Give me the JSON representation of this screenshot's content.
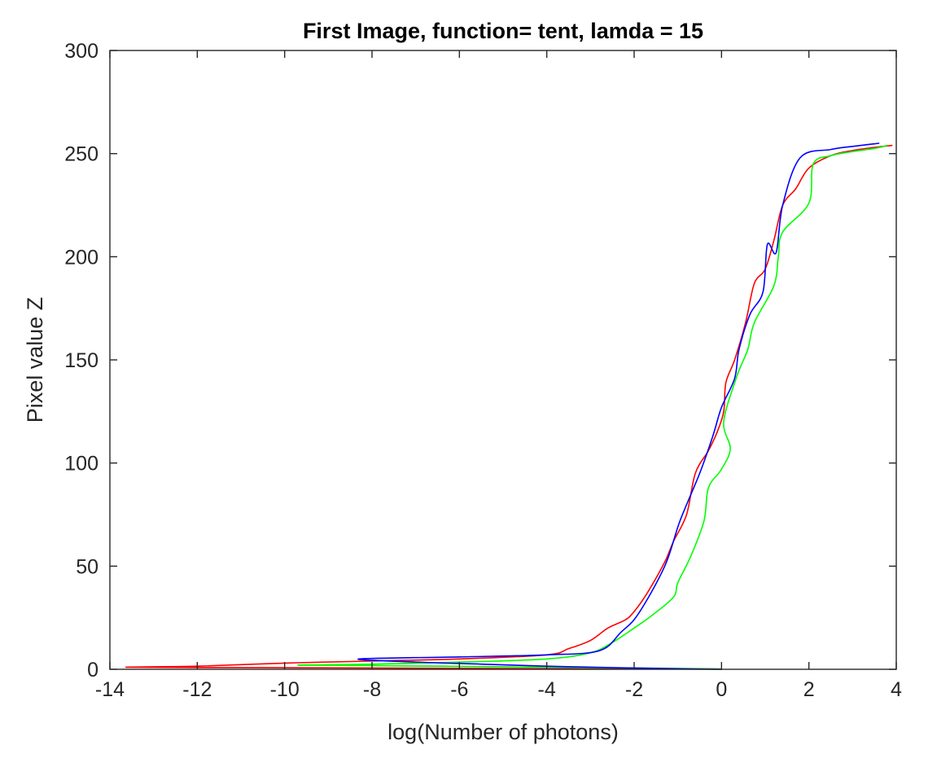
{
  "chart_data": {
    "type": "line",
    "title": "First Image, function= tent, lamda = 15",
    "xlabel": "log(Number of photons)",
    "ylabel": "Pixel value Z",
    "xlim": [
      -14,
      4
    ],
    "ylim": [
      0,
      300
    ],
    "xticks": [
      -14,
      -12,
      -10,
      -8,
      -6,
      -4,
      -2,
      0,
      2,
      4
    ],
    "yticks": [
      0,
      50,
      100,
      150,
      200,
      250,
      300
    ],
    "xtick_labels": [
      "-14",
      "-12",
      "-10",
      "-8",
      "-6",
      "-4",
      "-2",
      "0",
      "2",
      "4"
    ],
    "ytick_labels": [
      "0",
      "50",
      "100",
      "150",
      "200",
      "250",
      "300"
    ],
    "grid": false,
    "legend": "none",
    "series": [
      {
        "color": "#ff0000",
        "points": [
          [
            0,
            0
          ],
          [
            -2,
            0.2
          ],
          [
            -5,
            0.4
          ],
          [
            -8,
            0.6
          ],
          [
            -10.5,
            0.8
          ],
          [
            -13.6,
            1
          ],
          [
            -12,
            1.5
          ],
          [
            -10,
            3
          ],
          [
            -8,
            4
          ],
          [
            -6,
            5
          ],
          [
            -4,
            7
          ],
          [
            -3.5,
            10
          ],
          [
            -3,
            14
          ],
          [
            -2.6,
            20
          ],
          [
            -2.2,
            24
          ],
          [
            -2,
            28
          ],
          [
            -1.7,
            37
          ],
          [
            -1.3,
            52
          ],
          [
            -1.1,
            62
          ],
          [
            -0.8,
            75
          ],
          [
            -0.6,
            95
          ],
          [
            -0.3,
            106
          ],
          [
            -0.1,
            115
          ],
          [
            0.05,
            125
          ],
          [
            0.1,
            139
          ],
          [
            0.3,
            150
          ],
          [
            0.55,
            168
          ],
          [
            0.75,
            187
          ],
          [
            1.0,
            194
          ],
          [
            1.2,
            208
          ],
          [
            1.4,
            225
          ],
          [
            1.7,
            233
          ],
          [
            2.0,
            243
          ],
          [
            2.5,
            249
          ],
          [
            3.0,
            251.5
          ],
          [
            3.5,
            253
          ],
          [
            3.9,
            254
          ]
        ]
      },
      {
        "color": "#00ff00",
        "points": [
          [
            0,
            0.2
          ],
          [
            -2,
            0.6
          ],
          [
            -4,
            1
          ],
          [
            -6,
            1.4
          ],
          [
            -8,
            1.8
          ],
          [
            -9.7,
            2
          ],
          [
            -8,
            2.5
          ],
          [
            -6,
            3.5
          ],
          [
            -4,
            5
          ],
          [
            -3,
            8
          ],
          [
            -2.5,
            13
          ],
          [
            -2,
            20
          ],
          [
            -1.6,
            26
          ],
          [
            -1.1,
            35
          ],
          [
            -1.0,
            42
          ],
          [
            -0.7,
            55
          ],
          [
            -0.4,
            72
          ],
          [
            -0.3,
            88
          ],
          [
            0,
            97
          ],
          [
            0.2,
            107
          ],
          [
            0.05,
            120
          ],
          [
            0.35,
            142
          ],
          [
            0.6,
            155
          ],
          [
            0.75,
            168
          ],
          [
            1.2,
            186
          ],
          [
            1.3,
            200
          ],
          [
            1.4,
            212
          ],
          [
            2.0,
            226
          ],
          [
            2.1,
            245
          ],
          [
            2.5,
            249
          ],
          [
            3.0,
            251
          ],
          [
            3.5,
            252.5
          ],
          [
            3.8,
            254
          ]
        ]
      },
      {
        "color": "#0000ff",
        "points": [
          [
            0,
            0
          ],
          [
            -1,
            0.3
          ],
          [
            -2.5,
            0.8
          ],
          [
            -4,
            1.5
          ],
          [
            -5.5,
            2.5
          ],
          [
            -7,
            3.5
          ],
          [
            -8.3,
            5
          ],
          [
            -6,
            6
          ],
          [
            -4,
            7
          ],
          [
            -2.8,
            9
          ],
          [
            -2.3,
            18
          ],
          [
            -1.9,
            27
          ],
          [
            -1.3,
            50
          ],
          [
            -0.95,
            72
          ],
          [
            -0.5,
            95
          ],
          [
            -0.2,
            113
          ],
          [
            0,
            127
          ],
          [
            0.3,
            141
          ],
          [
            0.4,
            155
          ],
          [
            0.65,
            172
          ],
          [
            0.95,
            183
          ],
          [
            1.05,
            206
          ],
          [
            1.25,
            202
          ],
          [
            1.4,
            225
          ],
          [
            1.8,
            248
          ],
          [
            2.5,
            252
          ],
          [
            3.0,
            253.5
          ],
          [
            3.6,
            255
          ]
        ]
      }
    ]
  }
}
